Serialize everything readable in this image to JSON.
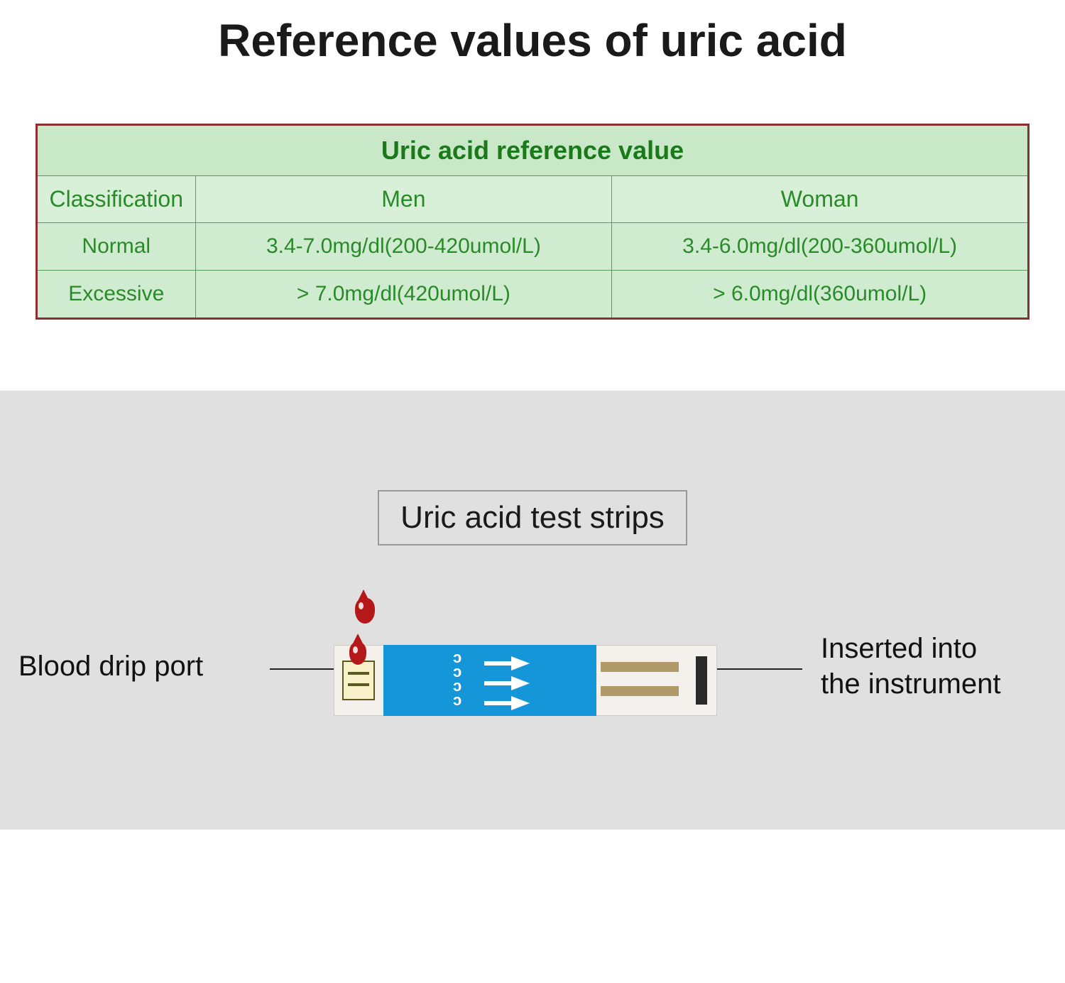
{
  "title": "Reference values of uric acid",
  "table": {
    "header": "Uric acid reference value",
    "columns": [
      "Classification",
      "Men",
      "Woman"
    ],
    "rows": [
      {
        "label": "Normal",
        "men": "3.4-7.0mg/dl(200-420umol/L)",
        "woman": "3.4-6.0mg/dl(200-360umol/L)"
      },
      {
        "label": "Excessive",
        "men": "> 7.0mg/dl(420umol/L)",
        "woman": "> 6.0mg/dl(360umol/L)"
      }
    ],
    "colors": {
      "outer_border": "#8b3030",
      "cell_border": "#5a9a5a",
      "header_bg": "#c8e8c8",
      "header_text": "#1a7a1a",
      "colrow_bg": "#d8f0d8",
      "cell_bg": "#d0ecd0",
      "cell_text": "#2a8a2a"
    },
    "font_sizes": {
      "header": 36,
      "columns": 32,
      "cells": 30
    }
  },
  "strip": {
    "title": "Uric acid test strips",
    "left_label": "Blood drip port",
    "right_label_line1": "Inserted into",
    "right_label_line2": "the instrument",
    "colors": {
      "section_bg": "#e0e0e0",
      "title_border": "#999999",
      "line": "#222222",
      "strip_body": "#f4f1ec",
      "strip_blue": "#1596d8",
      "blood": "#b51818",
      "contact": "#b09a6a",
      "contact_end": "#2a2a2a",
      "arrow": "#ffffff"
    },
    "font_sizes": {
      "title": 44,
      "labels": 40
    }
  }
}
